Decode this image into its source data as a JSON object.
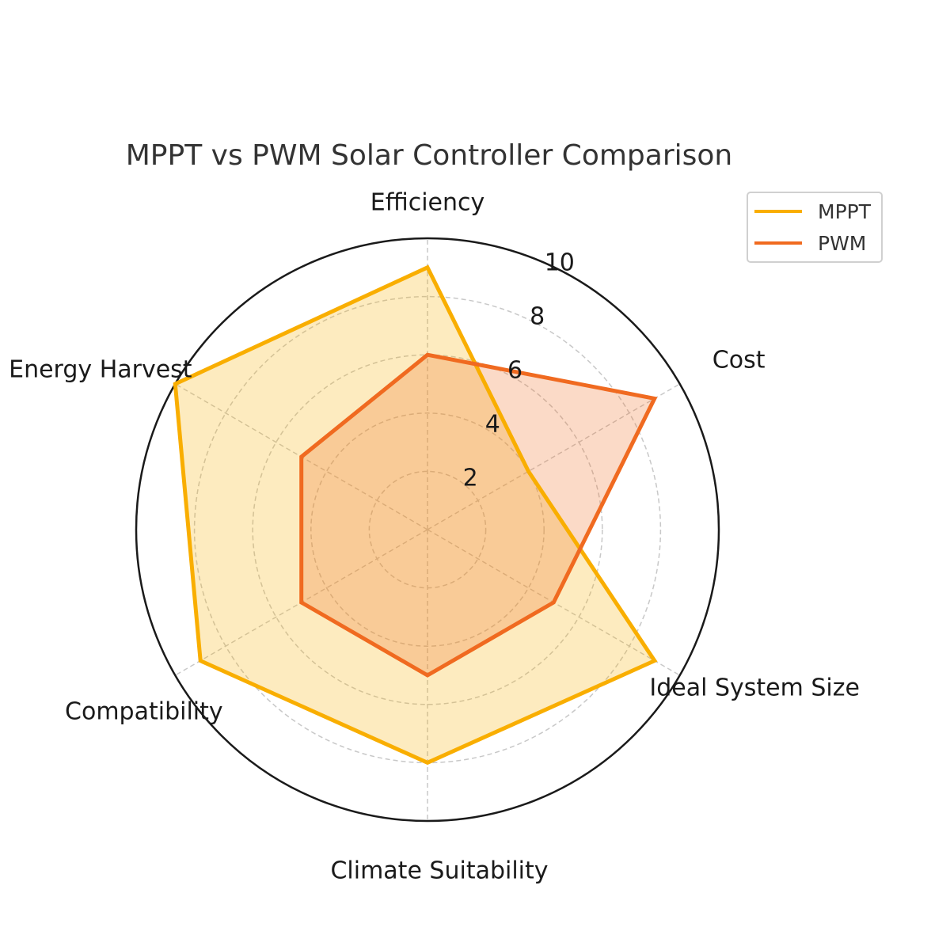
{
  "chart_data": {
    "type": "radar",
    "title": "MPPT vs PWM Solar Controller Comparison",
    "categories": [
      "Efficiency",
      "Cost",
      "Ideal System Size",
      "Climate Suitability",
      "Compatibility",
      "Energy Harvest"
    ],
    "rlim": [
      0,
      10
    ],
    "rticks": [
      2,
      4,
      6,
      8,
      10
    ],
    "grid": true,
    "legend_position": "top-right",
    "series": [
      {
        "name": "MPPT",
        "values": [
          9,
          4,
          9,
          8,
          9,
          10
        ],
        "color": "#F9AE00",
        "fill_opacity": 0.25
      },
      {
        "name": "PWM",
        "values": [
          6,
          9,
          5,
          5,
          5,
          5
        ],
        "color": "#F06A20",
        "fill_opacity": 0.25
      }
    ]
  }
}
